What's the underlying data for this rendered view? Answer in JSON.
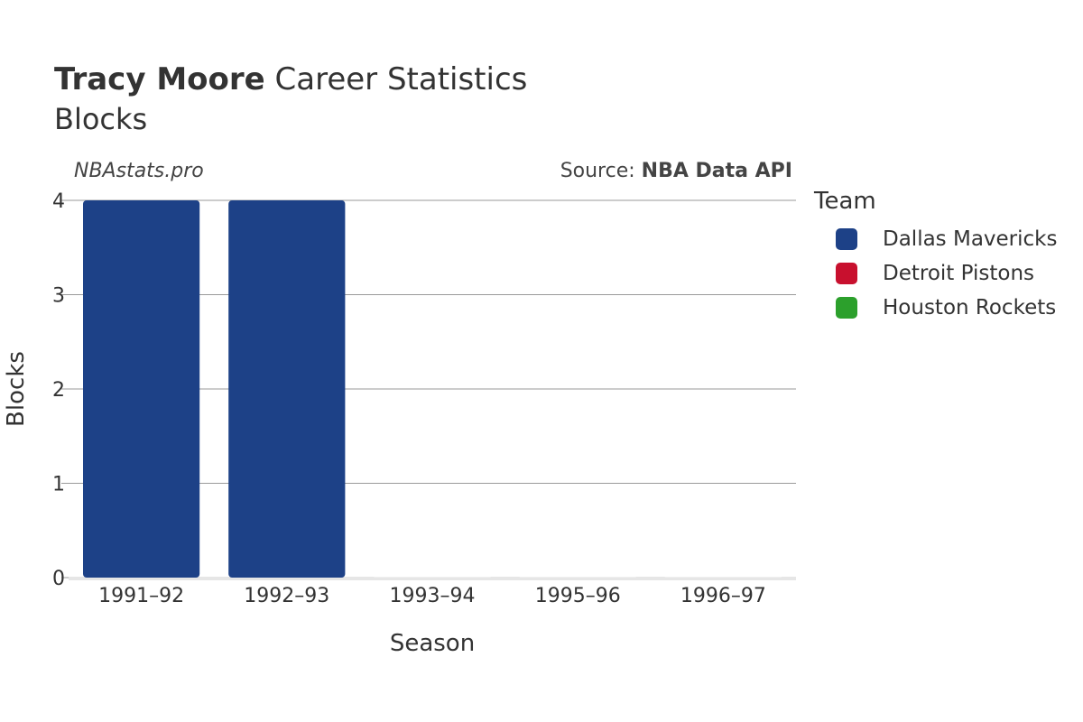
{
  "header": {
    "title_bold": "Tracy Moore",
    "title_rest": " Career Statistics",
    "subtitle": "Blocks"
  },
  "watermark": "NBAstats.pro",
  "source": {
    "prefix": "Source: ",
    "name": "NBA Data API"
  },
  "legend": {
    "title": "Team",
    "items": [
      {
        "label": "Dallas Mavericks",
        "color": "#1d4187"
      },
      {
        "label": "Detroit Pistons",
        "color": "#c8102e"
      },
      {
        "label": "Houston Rockets",
        "color": "#2ca02c"
      }
    ]
  },
  "chart_data": {
    "type": "bar",
    "categories": [
      "1991–92",
      "1992–93",
      "1993–94",
      "1995–96",
      "1996–97"
    ],
    "series": [
      {
        "name": "Dallas Mavericks",
        "color": "#1d4187",
        "values": [
          4,
          4,
          0,
          0,
          0
        ]
      }
    ],
    "xlabel": "Season",
    "ylabel": "Blocks",
    "ylim": [
      0,
      4
    ],
    "yticks": [
      0,
      1,
      2,
      3,
      4
    ],
    "grid": true
  }
}
